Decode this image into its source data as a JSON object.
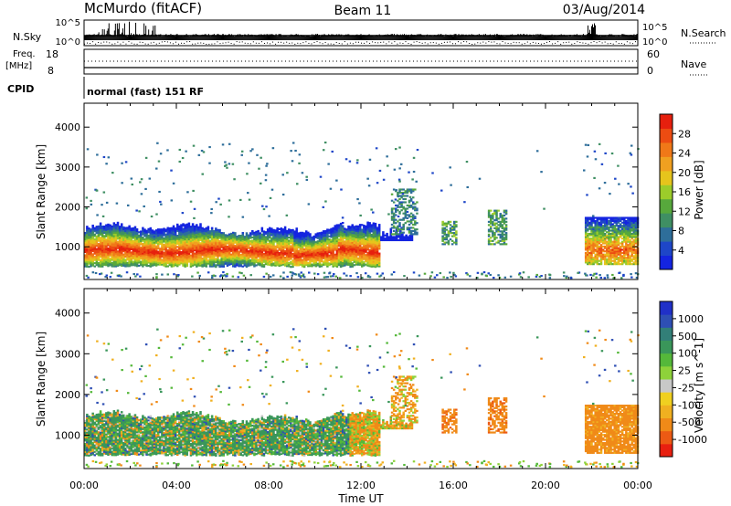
{
  "header": {
    "station": "McMurdo (fitACF)",
    "beam": "Beam 11",
    "date": "03/Aug/2014"
  },
  "top_panels": {
    "nsky_label": "N.Sky",
    "nsky_ticks": [
      "10^5",
      "10^0"
    ],
    "nsearch_label": "N.Search",
    "nsearch_ticks": [
      "10^5",
      "10^0"
    ],
    "freq_label_1": "Freq.",
    "freq_label_2": "[MHz]",
    "freq_ticks": [
      "18",
      "8"
    ],
    "nave_label": "Nave",
    "nave_ticks": [
      "60",
      "0"
    ],
    "cpid_label": "CPID",
    "cpid_text": "normal (fast) 151 RF"
  },
  "colors": {
    "power": [
      "#1424e0",
      "#1e46c8",
      "#2e6e9a",
      "#3f8f63",
      "#57a83c",
      "#9ccc2a",
      "#e6c41c",
      "#f0a020",
      "#f07818",
      "#ec4c12",
      "#e6200e"
    ],
    "velocity": [
      "#2030c8",
      "#2e4fb4",
      "#327f78",
      "#3a965a",
      "#55b83a",
      "#8ed23a",
      "#c8c8c8",
      "#f0d020",
      "#f0b020",
      "#f08a18",
      "#ec5a14",
      "#e82010"
    ]
  },
  "chart_data": [
    {
      "type": "heatmap",
      "title": "",
      "xlabel": "Time UT",
      "ylabel": "Slant Range [km]",
      "xticks": [
        "00:00",
        "04:00",
        "08:00",
        "12:00",
        "16:00",
        "20:00",
        "00:00"
      ],
      "yticks": [
        "1000",
        "2000",
        "3000",
        "4000"
      ],
      "xlim_hours": [
        0,
        24
      ],
      "ylim_km": [
        180,
        4600
      ],
      "colorbar": {
        "label": "Power [dB]",
        "ticks": [
          "28",
          "24",
          "20",
          "16",
          "12",
          "8",
          "4"
        ],
        "range": [
          0,
          30
        ]
      },
      "regions": [
        {
          "t": [
            0.0,
            14.2
          ],
          "range_km": [
            500,
            1450
          ],
          "value_db": "4-30",
          "core_db": 28,
          "core_km": [
            700,
            1100
          ]
        },
        {
          "t": [
            13.3,
            14.4
          ],
          "range_km": [
            1100,
            2500
          ],
          "value_db": "4-12"
        },
        {
          "t": [
            15.5,
            16.1
          ],
          "range_km": [
            1000,
            1700
          ],
          "value_db": "6-14"
        },
        {
          "t": [
            17.5,
            18.3
          ],
          "range_km": [
            1000,
            2000
          ],
          "value_db": "6-16"
        },
        {
          "t": [
            21.7,
            24.0
          ],
          "range_km": [
            600,
            1800
          ],
          "value_db": "4-28"
        }
      ]
    },
    {
      "type": "heatmap",
      "title": "",
      "xlabel": "Time UT",
      "ylabel": "Slant Range [km]",
      "xticks": [
        "00:00",
        "04:00",
        "08:00",
        "12:00",
        "16:00",
        "20:00",
        "00:00"
      ],
      "yticks": [
        "1000",
        "2000",
        "3000",
        "4000"
      ],
      "xlim_hours": [
        0,
        24
      ],
      "ylim_km": [
        180,
        4600
      ],
      "colorbar": {
        "label": "Velocity [m s^-1]",
        "ticks": [
          "1000",
          "500",
          "100",
          "25",
          "-25",
          "-100",
          "-500",
          "-1000"
        ],
        "range": [
          -1200,
          1200
        ]
      },
      "regions": [
        {
          "t": [
            0.0,
            11.5
          ],
          "range_km": [
            500,
            1450
          ],
          "value_ms": "25 to 500",
          "dominant": "green"
        },
        {
          "t": [
            11.5,
            14.2
          ],
          "range_km": [
            500,
            2200
          ],
          "value_ms": "-100 to 100"
        },
        {
          "t": [
            15.5,
            16.1
          ],
          "range_km": [
            1000,
            1600
          ],
          "value_ms": -150
        },
        {
          "t": [
            17.5,
            18.3
          ],
          "range_km": [
            1000,
            1800
          ],
          "value_ms": -150
        },
        {
          "t": [
            21.7,
            24.0
          ],
          "range_km": [
            500,
            1800
          ],
          "value_ms": -150
        }
      ]
    }
  ]
}
